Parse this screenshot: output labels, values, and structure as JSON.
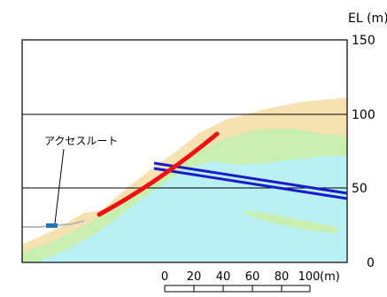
{
  "elevation_axis": {
    "unit_label": "EL (m)",
    "ticks": [
      "150",
      "100",
      "50",
      "0"
    ]
  },
  "annotation": {
    "access_route_label": "アクセスルート"
  },
  "scale_bar": {
    "labels": [
      "0",
      "20",
      "40",
      "60",
      "80",
      "100"
    ],
    "unit": "(m)"
  },
  "colors": {
    "frame": "#000000",
    "gridline": "#000000",
    "sand_layer": "#f5e2b0",
    "green_layer": "#c8eeb0",
    "water_layer": "#b8f0f4",
    "tunnel_line": "#ee1111",
    "dike_line": "#1a1acc",
    "access_marker": "#2a70c0"
  }
}
